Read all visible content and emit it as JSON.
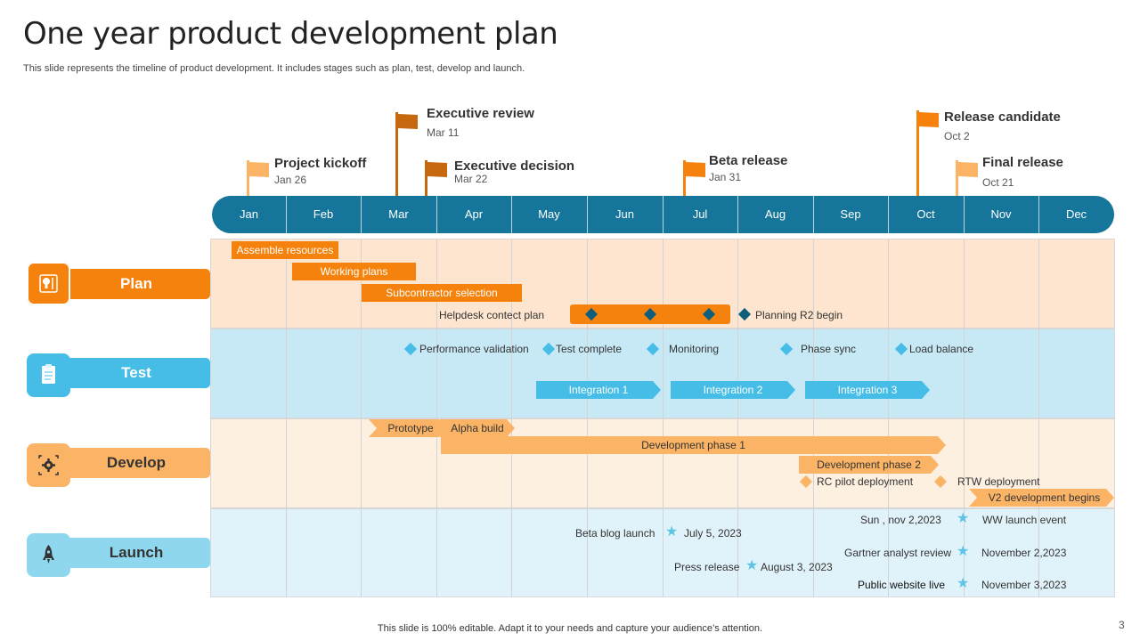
{
  "title": "One year product development plan",
  "subtitle": "This slide represents the timeline of  product development. It includes stages such as plan, test, develop and launch.",
  "footer": "This slide is 100% editable. Adapt it to your needs and capture your audience’s attention.",
  "page_number": "3",
  "months": [
    "Jan",
    "Feb",
    "Mar",
    "Apr",
    "May",
    "Jun",
    "Jul",
    "Aug",
    "Sep",
    "Oct",
    "Nov",
    "Dec"
  ],
  "milestones": {
    "kickoff": {
      "title": "Project kickoff",
      "date": "Jan 26"
    },
    "exec_review": {
      "title": "Executive review",
      "date": "Mar 11"
    },
    "exec_decision": {
      "title": "Executive decision",
      "date": "Mar 22"
    },
    "beta": {
      "title": "Beta release",
      "date": "Jan 31"
    },
    "release_candidate": {
      "title": "Release candidate",
      "date": "Oct 2"
    },
    "final_release": {
      "title": "Final release",
      "date": "Oct 21"
    }
  },
  "rows": {
    "plan": {
      "label": "Plan",
      "icon": "lightbulb-icon"
    },
    "test": {
      "label": "Test",
      "icon": "clipboard-icon"
    },
    "develop": {
      "label": "Develop",
      "icon": "gear-icon"
    },
    "launch": {
      "label": "Launch",
      "icon": "rocket-icon"
    }
  },
  "plan": {
    "assemble": "Assemble resources",
    "working": "Working plans",
    "subcontractor": "Subcontractor selection",
    "helpdesk": "Helpdesk contect plan",
    "planning_r2": "Planning R2 begin"
  },
  "test": {
    "performance": "Performance validation",
    "complete": "Test complete",
    "monitoring": "Monitoring",
    "phase_sync": "Phase sync",
    "load_balance": "Load balance",
    "integration1": "Integration 1",
    "integration2": "Integration 2",
    "integration3": "Integration 3"
  },
  "develop": {
    "prototype": "Prototype",
    "alpha": "Alpha build",
    "phase1": "Development phase 1",
    "phase2": "Development phase 2",
    "rc_pilot": "RC pilot deployment",
    "rtw": "RTW deployment",
    "v2": "V2 development begins"
  },
  "launch": {
    "beta_blog": "Beta blog launch",
    "beta_blog_date": "July 5, 2023",
    "press": "Press release",
    "press_date": "August 3, 2023",
    "ww_date": "Sun , nov 2,2023",
    "ww": "WW launch event",
    "gartner": "Gartner analyst review",
    "gartner_date": "November 2,2023",
    "website": "Public website live",
    "website_date": "November 3,2023"
  },
  "colors": {
    "timeline": "#16759a",
    "plan_band": "#fde5cf",
    "test_band": "#c6e9f5",
    "develop_band": "#fef0e1",
    "launch_band": "#e1f3fa",
    "plan_accent": "#f5820d",
    "test_accent": "#45bde6",
    "develop_accent": "#fbb466",
    "launch_accent": "#8ed7ef"
  }
}
